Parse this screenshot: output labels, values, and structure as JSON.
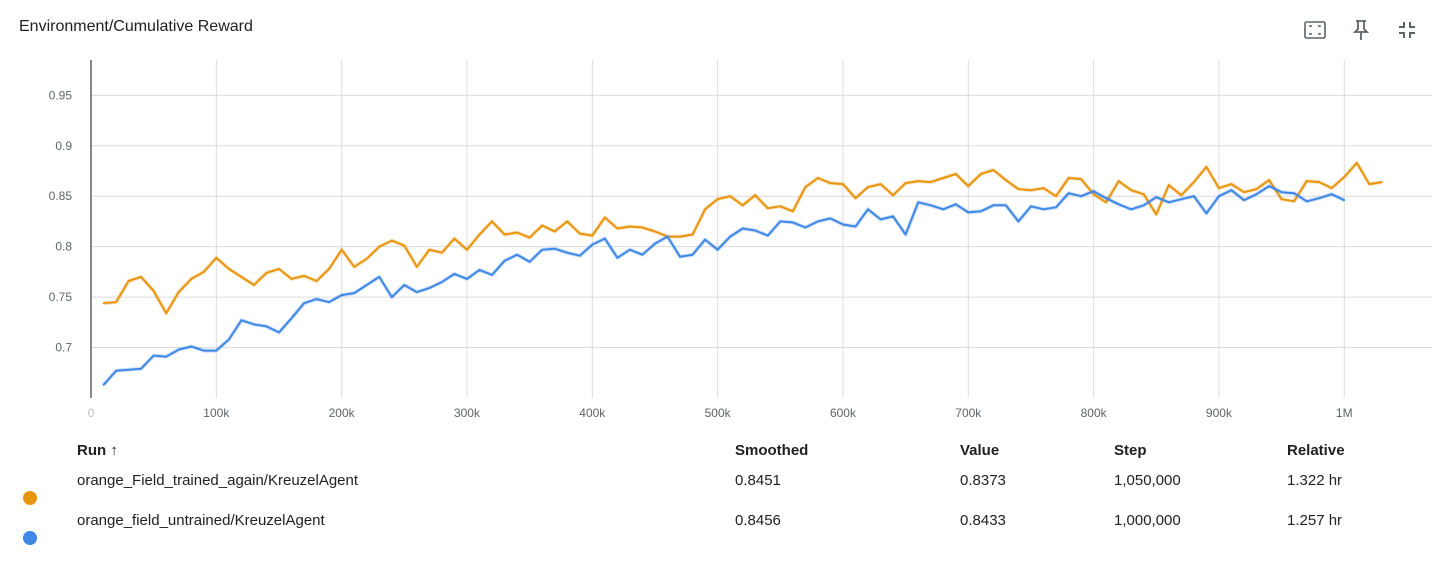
{
  "header": {
    "title": "Environment/Cumulative Reward",
    "icons": [
      "fit-to-screen-icon",
      "pin-icon",
      "collapse-icon"
    ]
  },
  "colors": {
    "series_1": "#e8950e",
    "series_2": "#3f88e6",
    "grid": "#dcdcdc"
  },
  "chart_data": {
    "type": "line",
    "title": "Environment/Cumulative Reward",
    "xlabel": "",
    "ylabel": "",
    "xlim": [
      0,
      1070000
    ],
    "ylim": [
      0.65,
      0.985
    ],
    "grid": true,
    "x_ticks": [
      {
        "v": 0,
        "label": "0"
      },
      {
        "v": 100000,
        "label": "100k"
      },
      {
        "v": 200000,
        "label": "200k"
      },
      {
        "v": 300000,
        "label": "300k"
      },
      {
        "v": 400000,
        "label": "400k"
      },
      {
        "v": 500000,
        "label": "500k"
      },
      {
        "v": 600000,
        "label": "600k"
      },
      {
        "v": 700000,
        "label": "700k"
      },
      {
        "v": 800000,
        "label": "800k"
      },
      {
        "v": 900000,
        "label": "900k"
      },
      {
        "v": 1000000,
        "label": "1M"
      }
    ],
    "y_ticks": [
      {
        "v": 0.7,
        "label": "0.7"
      },
      {
        "v": 0.75,
        "label": "0.75"
      },
      {
        "v": 0.8,
        "label": "0.8"
      },
      {
        "v": 0.85,
        "label": "0.85"
      },
      {
        "v": 0.9,
        "label": "0.9"
      },
      {
        "v": 0.95,
        "label": "0.95"
      }
    ],
    "series": [
      {
        "name": "orange_Field_trained_again/KreuzelAgent",
        "points": [
          [
            10000,
            0.744
          ],
          [
            20000,
            0.745
          ],
          [
            30000,
            0.766
          ],
          [
            40000,
            0.77
          ],
          [
            50000,
            0.756
          ],
          [
            60000,
            0.734
          ],
          [
            70000,
            0.755
          ],
          [
            80000,
            0.768
          ],
          [
            90000,
            0.775
          ],
          [
            100000,
            0.789
          ],
          [
            110000,
            0.778
          ],
          [
            120000,
            0.77
          ],
          [
            130000,
            0.762
          ],
          [
            140000,
            0.774
          ],
          [
            150000,
            0.778
          ],
          [
            160000,
            0.768
          ],
          [
            170000,
            0.771
          ],
          [
            180000,
            0.766
          ],
          [
            190000,
            0.778
          ],
          [
            200000,
            0.797
          ],
          [
            210000,
            0.78
          ],
          [
            220000,
            0.788
          ],
          [
            230000,
            0.8
          ],
          [
            240000,
            0.806
          ],
          [
            250000,
            0.801
          ],
          [
            260000,
            0.78
          ],
          [
            270000,
            0.797
          ],
          [
            280000,
            0.794
          ],
          [
            290000,
            0.808
          ],
          [
            300000,
            0.797
          ],
          [
            310000,
            0.812
          ],
          [
            320000,
            0.825
          ],
          [
            330000,
            0.812
          ],
          [
            340000,
            0.814
          ],
          [
            350000,
            0.809
          ],
          [
            360000,
            0.821
          ],
          [
            370000,
            0.815
          ],
          [
            380000,
            0.825
          ],
          [
            390000,
            0.813
          ],
          [
            400000,
            0.811
          ],
          [
            410000,
            0.829
          ],
          [
            420000,
            0.818
          ],
          [
            430000,
            0.82
          ],
          [
            440000,
            0.819
          ],
          [
            450000,
            0.815
          ],
          [
            460000,
            0.81
          ],
          [
            470000,
            0.81
          ],
          [
            480000,
            0.812
          ],
          [
            490000,
            0.837
          ],
          [
            500000,
            0.847
          ],
          [
            510000,
            0.85
          ],
          [
            520000,
            0.841
          ],
          [
            530000,
            0.851
          ],
          [
            540000,
            0.838
          ],
          [
            550000,
            0.84
          ],
          [
            560000,
            0.835
          ],
          [
            570000,
            0.859
          ],
          [
            580000,
            0.868
          ],
          [
            590000,
            0.863
          ],
          [
            600000,
            0.862
          ],
          [
            610000,
            0.848
          ],
          [
            620000,
            0.859
          ],
          [
            630000,
            0.862
          ],
          [
            640000,
            0.851
          ],
          [
            650000,
            0.863
          ],
          [
            660000,
            0.865
          ],
          [
            670000,
            0.864
          ],
          [
            680000,
            0.868
          ],
          [
            690000,
            0.872
          ],
          [
            700000,
            0.86
          ],
          [
            710000,
            0.872
          ],
          [
            720000,
            0.876
          ],
          [
            730000,
            0.866
          ],
          [
            740000,
            0.857
          ],
          [
            750000,
            0.856
          ],
          [
            760000,
            0.858
          ],
          [
            770000,
            0.85
          ],
          [
            780000,
            0.868
          ],
          [
            790000,
            0.867
          ],
          [
            800000,
            0.852
          ],
          [
            810000,
            0.844
          ],
          [
            820000,
            0.865
          ],
          [
            830000,
            0.856
          ],
          [
            840000,
            0.852
          ],
          [
            850000,
            0.832
          ],
          [
            860000,
            0.861
          ],
          [
            870000,
            0.851
          ],
          [
            880000,
            0.864
          ],
          [
            890000,
            0.879
          ],
          [
            900000,
            0.858
          ],
          [
            910000,
            0.862
          ],
          [
            920000,
            0.854
          ],
          [
            930000,
            0.857
          ],
          [
            940000,
            0.866
          ],
          [
            950000,
            0.847
          ],
          [
            960000,
            0.845
          ],
          [
            970000,
            0.865
          ],
          [
            980000,
            0.864
          ],
          [
            990000,
            0.858
          ],
          [
            1000000,
            0.869
          ],
          [
            1010000,
            0.883
          ],
          [
            1020000,
            0.862
          ],
          [
            1030000,
            0.864
          ]
        ],
        "smoothed": 0.8451,
        "value": 0.8373,
        "step": "1,050,000",
        "relative": "1.322 hr"
      },
      {
        "name": "orange_field_untrained/KreuzelAgent",
        "points": [
          [
            10000,
            0.663
          ],
          [
            20000,
            0.677
          ],
          [
            30000,
            0.678
          ],
          [
            40000,
            0.679
          ],
          [
            50000,
            0.692
          ],
          [
            60000,
            0.691
          ],
          [
            70000,
            0.698
          ],
          [
            80000,
            0.701
          ],
          [
            90000,
            0.697
          ],
          [
            100000,
            0.697
          ],
          [
            110000,
            0.708
          ],
          [
            120000,
            0.727
          ],
          [
            130000,
            0.723
          ],
          [
            140000,
            0.721
          ],
          [
            150000,
            0.715
          ],
          [
            160000,
            0.729
          ],
          [
            170000,
            0.744
          ],
          [
            180000,
            0.748
          ],
          [
            190000,
            0.745
          ],
          [
            200000,
            0.752
          ],
          [
            210000,
            0.754
          ],
          [
            220000,
            0.762
          ],
          [
            230000,
            0.77
          ],
          [
            240000,
            0.75
          ],
          [
            250000,
            0.762
          ],
          [
            260000,
            0.755
          ],
          [
            270000,
            0.759
          ],
          [
            280000,
            0.765
          ],
          [
            290000,
            0.773
          ],
          [
            300000,
            0.768
          ],
          [
            310000,
            0.777
          ],
          [
            320000,
            0.772
          ],
          [
            330000,
            0.786
          ],
          [
            340000,
            0.792
          ],
          [
            350000,
            0.785
          ],
          [
            360000,
            0.797
          ],
          [
            370000,
            0.798
          ],
          [
            380000,
            0.794
          ],
          [
            390000,
            0.791
          ],
          [
            400000,
            0.802
          ],
          [
            410000,
            0.808
          ],
          [
            420000,
            0.789
          ],
          [
            430000,
            0.797
          ],
          [
            440000,
            0.792
          ],
          [
            450000,
            0.803
          ],
          [
            460000,
            0.81
          ],
          [
            470000,
            0.79
          ],
          [
            480000,
            0.792
          ],
          [
            490000,
            0.807
          ],
          [
            500000,
            0.797
          ],
          [
            510000,
            0.81
          ],
          [
            520000,
            0.818
          ],
          [
            530000,
            0.816
          ],
          [
            540000,
            0.811
          ],
          [
            550000,
            0.825
          ],
          [
            560000,
            0.824
          ],
          [
            570000,
            0.819
          ],
          [
            580000,
            0.825
          ],
          [
            590000,
            0.828
          ],
          [
            600000,
            0.822
          ],
          [
            610000,
            0.82
          ],
          [
            620000,
            0.837
          ],
          [
            630000,
            0.827
          ],
          [
            640000,
            0.83
          ],
          [
            650000,
            0.812
          ],
          [
            660000,
            0.844
          ],
          [
            670000,
            0.841
          ],
          [
            680000,
            0.837
          ],
          [
            690000,
            0.842
          ],
          [
            700000,
            0.834
          ],
          [
            710000,
            0.835
          ],
          [
            720000,
            0.841
          ],
          [
            730000,
            0.841
          ],
          [
            740000,
            0.825
          ],
          [
            750000,
            0.84
          ],
          [
            760000,
            0.837
          ],
          [
            770000,
            0.839
          ],
          [
            780000,
            0.853
          ],
          [
            790000,
            0.85
          ],
          [
            800000,
            0.855
          ],
          [
            810000,
            0.848
          ],
          [
            820000,
            0.842
          ],
          [
            830000,
            0.837
          ],
          [
            840000,
            0.841
          ],
          [
            850000,
            0.849
          ],
          [
            860000,
            0.844
          ],
          [
            870000,
            0.847
          ],
          [
            880000,
            0.85
          ],
          [
            890000,
            0.833
          ],
          [
            900000,
            0.85
          ],
          [
            910000,
            0.856
          ],
          [
            920000,
            0.846
          ],
          [
            930000,
            0.852
          ],
          [
            940000,
            0.86
          ],
          [
            950000,
            0.854
          ],
          [
            960000,
            0.853
          ],
          [
            970000,
            0.845
          ],
          [
            980000,
            0.848
          ],
          [
            990000,
            0.852
          ],
          [
            1000000,
            0.846
          ]
        ],
        "smoothed": 0.8456,
        "value": 0.8433,
        "step": "1,000,000",
        "relative": "1.257 hr"
      }
    ]
  },
  "table": {
    "headers": {
      "run": "Run ↑",
      "smoothed": "Smoothed",
      "value": "Value",
      "step": "Step",
      "relative": "Relative"
    },
    "rows": [
      {
        "run": "orange_Field_trained_again/KreuzelAgent",
        "smoothed": "0.8451",
        "value": "0.8373",
        "step": "1,050,000",
        "relative": "1.322 hr",
        "color": "#e8950e"
      },
      {
        "run": "orange_field_untrained/KreuzelAgent",
        "smoothed": "0.8456",
        "value": "0.8433",
        "step": "1,000,000",
        "relative": "1.257 hr",
        "color": "#3f88e6"
      }
    ]
  }
}
